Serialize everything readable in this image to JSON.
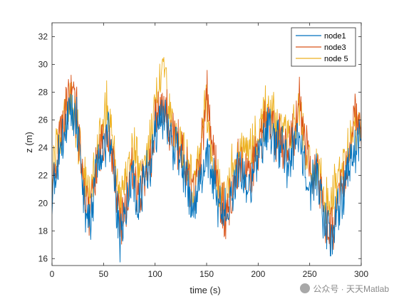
{
  "chart_data": {
    "type": "line",
    "title": "",
    "xlabel": "time (s)",
    "ylabel": "z (m)",
    "xlim": [
      0,
      300
    ],
    "ylim": [
      15.5,
      33
    ],
    "xticks": [
      0,
      50,
      100,
      150,
      200,
      250,
      300
    ],
    "yticks": [
      16,
      18,
      20,
      22,
      24,
      26,
      28,
      30,
      32
    ],
    "grid": false,
    "legend_position": "top-right",
    "x": [
      0,
      6,
      12,
      18,
      24,
      30,
      36,
      42,
      48,
      54,
      60,
      66,
      72,
      78,
      84,
      90,
      96,
      102,
      108,
      114,
      120,
      126,
      132,
      138,
      144,
      150,
      156,
      162,
      168,
      174,
      180,
      186,
      192,
      198,
      204,
      210,
      216,
      222,
      228,
      234,
      240,
      246,
      252,
      258,
      264,
      270,
      276,
      282,
      288,
      294,
      300
    ],
    "series": [
      {
        "name": "node1",
        "color": "#0072BD",
        "values": [
          20.5,
          23.5,
          25.5,
          26.5,
          26.0,
          20.5,
          18.5,
          21.5,
          23.5,
          25.0,
          22.0,
          17.5,
          19.5,
          22.0,
          20.0,
          21.5,
          23.0,
          25.5,
          26.5,
          25.0,
          24.0,
          23.0,
          21.0,
          19.5,
          21.5,
          23.5,
          22.0,
          20.0,
          19.5,
          20.5,
          22.5,
          22.0,
          21.0,
          22.5,
          24.0,
          25.5,
          24.5,
          24.0,
          23.0,
          24.0,
          24.5,
          22.0,
          21.5,
          22.0,
          18.5,
          17.5,
          19.0,
          20.5,
          23.0,
          24.0,
          24.5
        ]
      },
      {
        "name": "node3",
        "color": "#D95319",
        "values": [
          21.0,
          24.0,
          26.0,
          28.0,
          26.5,
          21.0,
          19.0,
          22.0,
          24.5,
          25.5,
          22.5,
          18.5,
          20.0,
          22.5,
          20.5,
          22.0,
          23.5,
          26.5,
          27.5,
          25.5,
          24.5,
          23.5,
          22.0,
          20.5,
          23.5,
          28.0,
          24.0,
          21.0,
          19.0,
          20.5,
          22.5,
          22.5,
          22.0,
          23.5,
          25.0,
          26.0,
          25.0,
          24.5,
          24.0,
          24.5,
          27.5,
          24.0,
          22.5,
          22.0,
          19.0,
          18.0,
          19.5,
          21.5,
          24.0,
          26.5,
          25.5
        ]
      },
      {
        "name": "node 5",
        "color": "#EDB120",
        "values": [
          22.0,
          24.5,
          26.0,
          27.5,
          25.5,
          22.0,
          20.0,
          23.0,
          25.5,
          27.0,
          24.0,
          20.0,
          21.0,
          24.0,
          22.5,
          23.0,
          24.5,
          28.0,
          30.0,
          26.5,
          25.0,
          24.0,
          22.5,
          21.5,
          24.0,
          27.0,
          23.0,
          21.0,
          20.5,
          22.0,
          24.0,
          24.0,
          23.5,
          24.5,
          26.0,
          27.0,
          26.0,
          25.5,
          25.0,
          25.5,
          27.0,
          23.5,
          22.5,
          22.5,
          20.5,
          20.0,
          21.5,
          22.5,
          24.5,
          25.5,
          25.0
        ]
      }
    ]
  },
  "watermark": {
    "text": "公众号 · 天天Matlab"
  }
}
